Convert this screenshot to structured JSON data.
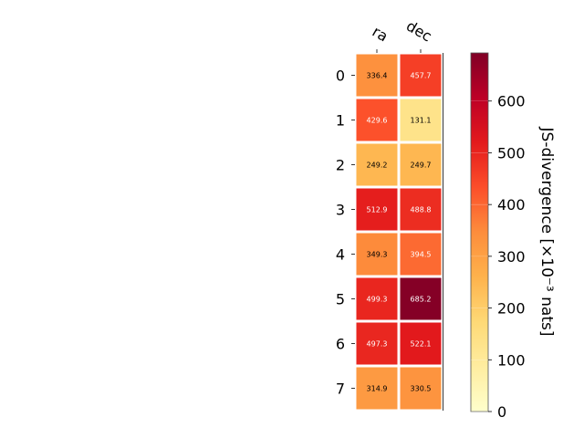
{
  "chart_data": {
    "type": "heatmap",
    "columns": [
      "ra",
      "dec"
    ],
    "rows": [
      "0",
      "1",
      "2",
      "3",
      "4",
      "5",
      "6",
      "7"
    ],
    "values": [
      [
        336.4,
        457.7
      ],
      [
        429.6,
        131.1
      ],
      [
        249.2,
        249.7
      ],
      [
        512.9,
        488.8
      ],
      [
        349.3,
        394.5
      ],
      [
        499.3,
        685.2
      ],
      [
        497.3,
        522.1
      ],
      [
        314.9,
        330.5
      ]
    ],
    "labels": [
      [
        "336.4",
        "457.7"
      ],
      [
        "429.6",
        "131.1"
      ],
      [
        "249.2",
        "249.7"
      ],
      [
        "512.9",
        "488.8"
      ],
      [
        "349.3",
        "394.5"
      ],
      [
        "499.3",
        "685.2"
      ],
      [
        "497.3",
        "522.1"
      ],
      [
        "314.9",
        "330.5"
      ]
    ],
    "colormap": "YlOrRd",
    "colorbar": {
      "label": "JS-divergence [×10⁻³ nats]",
      "range": [
        0,
        693
      ],
      "ticks": [
        0,
        100,
        200,
        300,
        400,
        500,
        600
      ],
      "tick_labels": [
        "0",
        "100",
        "200",
        "300",
        "400",
        "500",
        "600"
      ]
    }
  }
}
